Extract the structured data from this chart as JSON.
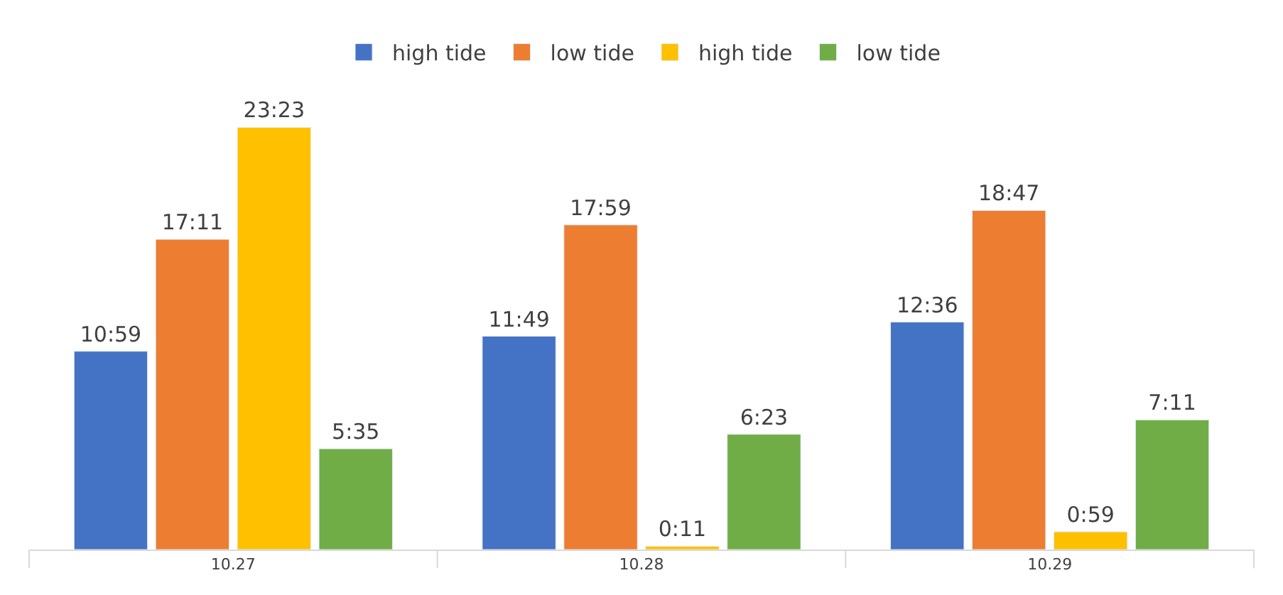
{
  "chart_data": {
    "type": "bar",
    "categories": [
      "10.27",
      "10.28",
      "10.29"
    ],
    "series": [
      {
        "name": "high tide",
        "color": "#4472c4",
        "values": [
          10.983,
          11.817,
          12.6
        ],
        "value_labels": [
          "10:59",
          "11:49",
          "12:36"
        ]
      },
      {
        "name": "low tide",
        "color": "#ed7d31",
        "values": [
          17.183,
          17.983,
          18.783
        ],
        "value_labels": [
          "17:11",
          "17:59",
          "18:47"
        ]
      },
      {
        "name": "high tide",
        "color": "#ffc000",
        "values": [
          23.383,
          0.183,
          0.983
        ],
        "value_labels": [
          "23:23",
          "0:11",
          "0:59"
        ]
      },
      {
        "name": "low tide",
        "color": "#70ad47",
        "values": [
          5.583,
          6.383,
          7.183
        ],
        "value_labels": [
          "5:35",
          "6:23",
          "7:11"
        ]
      }
    ],
    "legend": "top",
    "tick_labels": "x"
  }
}
